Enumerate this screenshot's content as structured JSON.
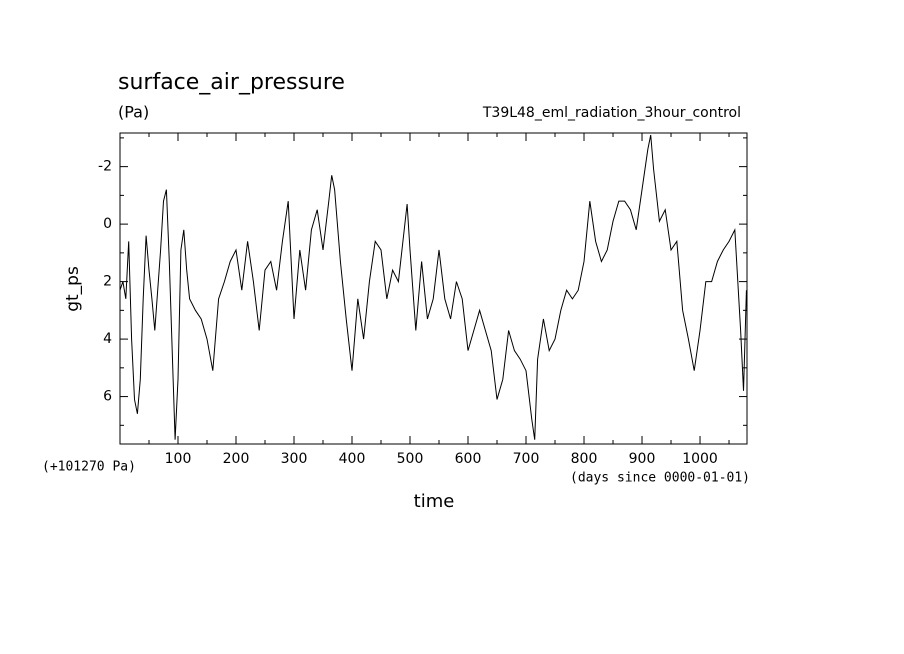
{
  "chart_data": {
    "type": "line",
    "title": "surface_air_pressure",
    "units": "(Pa)",
    "subtitle": "T39L48_eml_radiation_3hour_control",
    "y_label": "gt_ps",
    "x_label": "time",
    "y_offset_label": "(+101270 Pa)",
    "x_units_label": "(days since 0000-01-01)",
    "xlim": [
      0,
      1081
    ],
    "ylim": [
      7.65,
      -3.17
    ],
    "xticks": [
      100,
      200,
      300,
      400,
      500,
      600,
      700,
      800,
      900,
      1000
    ],
    "xminorticks": [
      50,
      150,
      250,
      350,
      450,
      550,
      650,
      750,
      850,
      950,
      1050
    ],
    "yticks": [
      -2,
      0,
      2,
      4,
      6
    ],
    "yminorticks": [
      -3,
      -1,
      1,
      3,
      5,
      7
    ],
    "x": [
      0,
      5,
      10,
      15,
      20,
      25,
      30,
      35,
      40,
      45,
      50,
      55,
      60,
      65,
      70,
      75,
      80,
      85,
      90,
      95,
      100,
      105,
      110,
      115,
      120,
      130,
      140,
      150,
      160,
      170,
      180,
      190,
      200,
      210,
      220,
      230,
      240,
      250,
      260,
      270,
      280,
      290,
      300,
      310,
      320,
      330,
      340,
      350,
      360,
      365,
      370,
      380,
      390,
      400,
      410,
      420,
      430,
      440,
      450,
      460,
      470,
      480,
      490,
      495,
      500,
      510,
      520,
      530,
      540,
      550,
      560,
      570,
      580,
      590,
      600,
      610,
      620,
      630,
      640,
      650,
      660,
      670,
      680,
      690,
      700,
      710,
      715,
      720,
      730,
      740,
      750,
      760,
      770,
      780,
      790,
      800,
      810,
      820,
      830,
      840,
      850,
      860,
      870,
      880,
      890,
      900,
      910,
      915,
      920,
      930,
      940,
      950,
      960,
      970,
      980,
      990,
      1000,
      1010,
      1020,
      1030,
      1040,
      1050,
      1060,
      1070,
      1075,
      1080
    ],
    "series": [
      {
        "color": "#000000",
        "values": [
          2.3,
          2.0,
          2.6,
          0.6,
          4.0,
          6.1,
          6.6,
          5.4,
          2.6,
          0.4,
          1.6,
          2.6,
          3.7,
          2.3,
          0.9,
          -0.8,
          -1.2,
          1.3,
          4.4,
          7.5,
          5.4,
          0.9,
          0.2,
          1.6,
          2.6,
          3.0,
          3.3,
          4.0,
          5.1,
          2.6,
          2.0,
          1.3,
          0.9,
          2.3,
          0.6,
          2.0,
          3.7,
          1.6,
          1.3,
          2.3,
          0.6,
          -0.8,
          3.3,
          0.9,
          2.3,
          0.2,
          -0.5,
          0.9,
          -0.8,
          -1.7,
          -1.2,
          1.3,
          3.3,
          5.1,
          2.6,
          4.0,
          2.0,
          0.6,
          0.9,
          2.6,
          1.6,
          2.0,
          0.2,
          -0.7,
          0.9,
          3.7,
          1.3,
          3.3,
          2.6,
          0.9,
          2.6,
          3.3,
          2.0,
          2.6,
          4.4,
          3.7,
          3.0,
          3.7,
          4.4,
          6.1,
          5.4,
          3.7,
          4.4,
          4.7,
          5.1,
          6.8,
          7.5,
          4.7,
          3.3,
          4.4,
          4.0,
          3.0,
          2.3,
          2.6,
          2.3,
          1.3,
          -0.8,
          0.6,
          1.3,
          0.9,
          -0.1,
          -0.8,
          -0.8,
          -0.5,
          0.2,
          -1.2,
          -2.6,
          -3.1,
          -1.9,
          -0.1,
          -0.5,
          0.9,
          0.6,
          3.0,
          4.0,
          5.1,
          3.7,
          2.0,
          2.0,
          1.3,
          0.9,
          0.6,
          0.2,
          3.7,
          5.8,
          2.3
        ]
      }
    ]
  }
}
